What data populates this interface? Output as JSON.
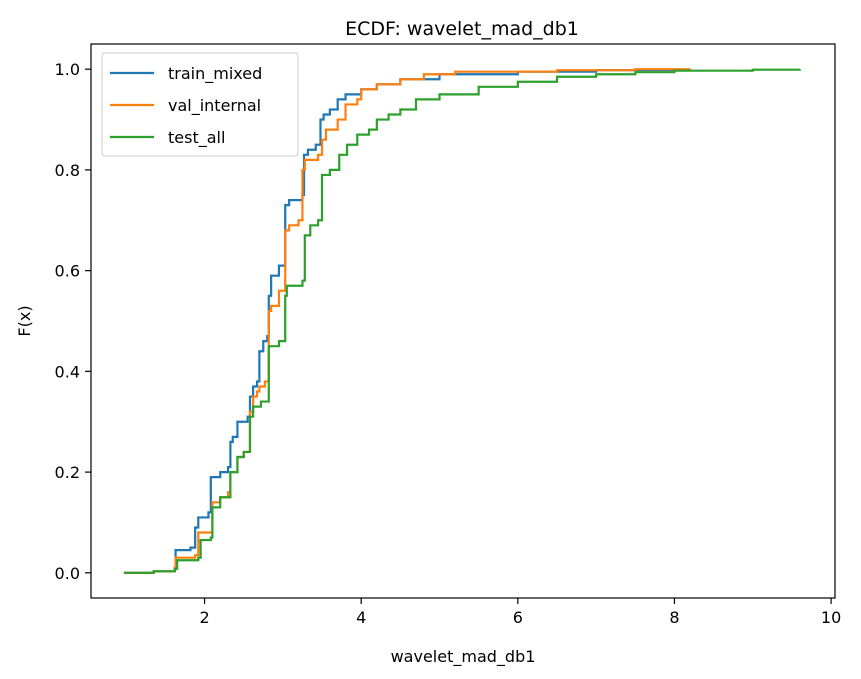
{
  "chart_data": {
    "type": "line",
    "title": "ECDF: wavelet_mad_db1",
    "xlabel": "wavelet_mad_db1",
    "ylabel": "F(x)",
    "xlim": [
      0.55,
      10.05
    ],
    "ylim": [
      -0.05,
      1.05
    ],
    "xticks": [
      2,
      4,
      6,
      8,
      10
    ],
    "yticks": [
      0.0,
      0.2,
      0.4,
      0.6,
      0.8,
      1.0
    ],
    "xtick_labels": [
      "2",
      "4",
      "6",
      "8",
      "10"
    ],
    "ytick_labels": [
      "0.0",
      "0.2",
      "0.4",
      "0.6",
      "0.8",
      "1.0"
    ],
    "grid": false,
    "legend_position": "top-left",
    "step": "post",
    "series": [
      {
        "name": "train_mixed",
        "color": "#1f77b4",
        "points": [
          [
            0.97,
            0.0
          ],
          [
            1.35,
            0.003
          ],
          [
            1.62,
            0.01
          ],
          [
            1.63,
            0.045
          ],
          [
            1.82,
            0.05
          ],
          [
            1.88,
            0.09
          ],
          [
            1.92,
            0.11
          ],
          [
            2.05,
            0.12
          ],
          [
            2.08,
            0.19
          ],
          [
            2.2,
            0.2
          ],
          [
            2.3,
            0.21
          ],
          [
            2.33,
            0.26
          ],
          [
            2.36,
            0.27
          ],
          [
            2.42,
            0.3
          ],
          [
            2.55,
            0.31
          ],
          [
            2.58,
            0.35
          ],
          [
            2.62,
            0.37
          ],
          [
            2.67,
            0.38
          ],
          [
            2.7,
            0.44
          ],
          [
            2.75,
            0.46
          ],
          [
            2.8,
            0.47
          ],
          [
            2.82,
            0.55
          ],
          [
            2.85,
            0.59
          ],
          [
            2.95,
            0.61
          ],
          [
            3.02,
            0.61
          ],
          [
            3.03,
            0.73
          ],
          [
            3.08,
            0.74
          ],
          [
            3.25,
            0.75
          ],
          [
            3.27,
            0.83
          ],
          [
            3.32,
            0.84
          ],
          [
            3.42,
            0.85
          ],
          [
            3.48,
            0.9
          ],
          [
            3.52,
            0.91
          ],
          [
            3.6,
            0.92
          ],
          [
            3.7,
            0.94
          ],
          [
            3.8,
            0.95
          ],
          [
            4.0,
            0.96
          ],
          [
            4.2,
            0.97
          ],
          [
            4.5,
            0.98
          ],
          [
            5.0,
            0.99
          ],
          [
            6.0,
            0.995
          ],
          [
            7.0,
            0.998
          ],
          [
            8.2,
            1.0
          ]
        ]
      },
      {
        "name": "val_internal",
        "color": "#ff7f0e",
        "points": [
          [
            0.97,
            0.0
          ],
          [
            1.35,
            0.003
          ],
          [
            1.62,
            0.01
          ],
          [
            1.63,
            0.03
          ],
          [
            1.88,
            0.035
          ],
          [
            1.92,
            0.08
          ],
          [
            2.08,
            0.08
          ],
          [
            2.1,
            0.14
          ],
          [
            2.2,
            0.15
          ],
          [
            2.3,
            0.16
          ],
          [
            2.33,
            0.2
          ],
          [
            2.42,
            0.23
          ],
          [
            2.5,
            0.24
          ],
          [
            2.58,
            0.32
          ],
          [
            2.62,
            0.35
          ],
          [
            2.67,
            0.36
          ],
          [
            2.7,
            0.37
          ],
          [
            2.77,
            0.38
          ],
          [
            2.82,
            0.52
          ],
          [
            2.85,
            0.53
          ],
          [
            2.95,
            0.56
          ],
          [
            3.03,
            0.68
          ],
          [
            3.08,
            0.69
          ],
          [
            3.2,
            0.7
          ],
          [
            3.25,
            0.8
          ],
          [
            3.28,
            0.82
          ],
          [
            3.45,
            0.83
          ],
          [
            3.5,
            0.86
          ],
          [
            3.55,
            0.88
          ],
          [
            3.7,
            0.9
          ],
          [
            3.8,
            0.93
          ],
          [
            3.95,
            0.94
          ],
          [
            4.0,
            0.96
          ],
          [
            4.2,
            0.97
          ],
          [
            4.5,
            0.98
          ],
          [
            4.8,
            0.99
          ],
          [
            5.2,
            0.995
          ],
          [
            6.5,
            0.998
          ],
          [
            7.5,
            1.0
          ],
          [
            8.2,
            1.0
          ]
        ]
      },
      {
        "name": "test_all",
        "color": "#2ca02c",
        "points": [
          [
            0.97,
            0.0
          ],
          [
            1.35,
            0.003
          ],
          [
            1.62,
            0.008
          ],
          [
            1.65,
            0.025
          ],
          [
            1.92,
            0.03
          ],
          [
            1.95,
            0.065
          ],
          [
            2.08,
            0.07
          ],
          [
            2.1,
            0.13
          ],
          [
            2.2,
            0.15
          ],
          [
            2.33,
            0.2
          ],
          [
            2.42,
            0.23
          ],
          [
            2.5,
            0.24
          ],
          [
            2.58,
            0.31
          ],
          [
            2.62,
            0.33
          ],
          [
            2.72,
            0.34
          ],
          [
            2.82,
            0.45
          ],
          [
            2.95,
            0.46
          ],
          [
            3.03,
            0.55
          ],
          [
            3.05,
            0.57
          ],
          [
            3.25,
            0.58
          ],
          [
            3.28,
            0.67
          ],
          [
            3.35,
            0.69
          ],
          [
            3.45,
            0.7
          ],
          [
            3.5,
            0.79
          ],
          [
            3.6,
            0.8
          ],
          [
            3.72,
            0.83
          ],
          [
            3.82,
            0.85
          ],
          [
            3.95,
            0.87
          ],
          [
            4.1,
            0.88
          ],
          [
            4.2,
            0.9
          ],
          [
            4.35,
            0.91
          ],
          [
            4.5,
            0.92
          ],
          [
            4.7,
            0.94
          ],
          [
            5.0,
            0.95
          ],
          [
            5.5,
            0.965
          ],
          [
            6.0,
            0.975
          ],
          [
            6.5,
            0.985
          ],
          [
            7.0,
            0.99
          ],
          [
            7.5,
            0.994
          ],
          [
            8.0,
            0.997
          ],
          [
            9.0,
            0.999
          ],
          [
            9.6,
            1.0
          ]
        ]
      }
    ]
  }
}
